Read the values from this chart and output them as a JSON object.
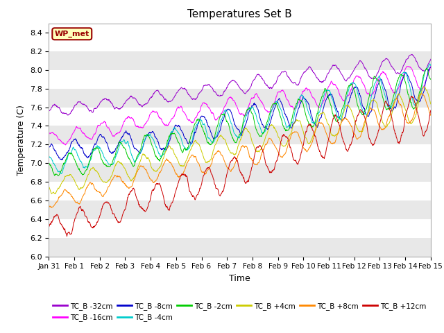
{
  "title": "Temperatures Set B",
  "xlabel": "Time",
  "ylabel": "Temperature (C)",
  "ylim": [
    6.0,
    8.5
  ],
  "series_names": [
    "TC_B -32cm",
    "TC_B -16cm",
    "TC_B -8cm",
    "TC_B -4cm",
    "TC_B -2cm",
    "TC_B +4cm",
    "TC_B +8cm",
    "TC_B +12cm"
  ],
  "series_colors": [
    "#9900cc",
    "#ff00ff",
    "#0000cc",
    "#00cccc",
    "#00cc00",
    "#cccc00",
    "#ff8800",
    "#cc0000"
  ],
  "background_color": "#ffffff",
  "plot_bg_color": "#ffffff",
  "n_points": 1440,
  "xtick_labels": [
    "Jan 31",
    "Feb 1",
    "Feb 2",
    "Feb 3",
    "Feb 4",
    "Feb 5",
    "Feb 6",
    "Feb 7",
    "Feb 8",
    "Feb 9",
    "Feb 10",
    "Feb 11",
    "Feb 12",
    "Feb 13",
    "Feb 14",
    "Feb 15"
  ],
  "base_temps": [
    7.55,
    7.25,
    7.1,
    7.0,
    6.95,
    6.75,
    6.6,
    6.3
  ],
  "end_temps": [
    8.1,
    7.95,
    7.85,
    7.85,
    7.8,
    7.65,
    7.6,
    7.55
  ],
  "amplitudes": [
    0.1,
    0.13,
    0.18,
    0.2,
    0.2,
    0.17,
    0.15,
    0.22
  ],
  "noise_scale": [
    0.04,
    0.05,
    0.06,
    0.06,
    0.06,
    0.05,
    0.05,
    0.07
  ]
}
